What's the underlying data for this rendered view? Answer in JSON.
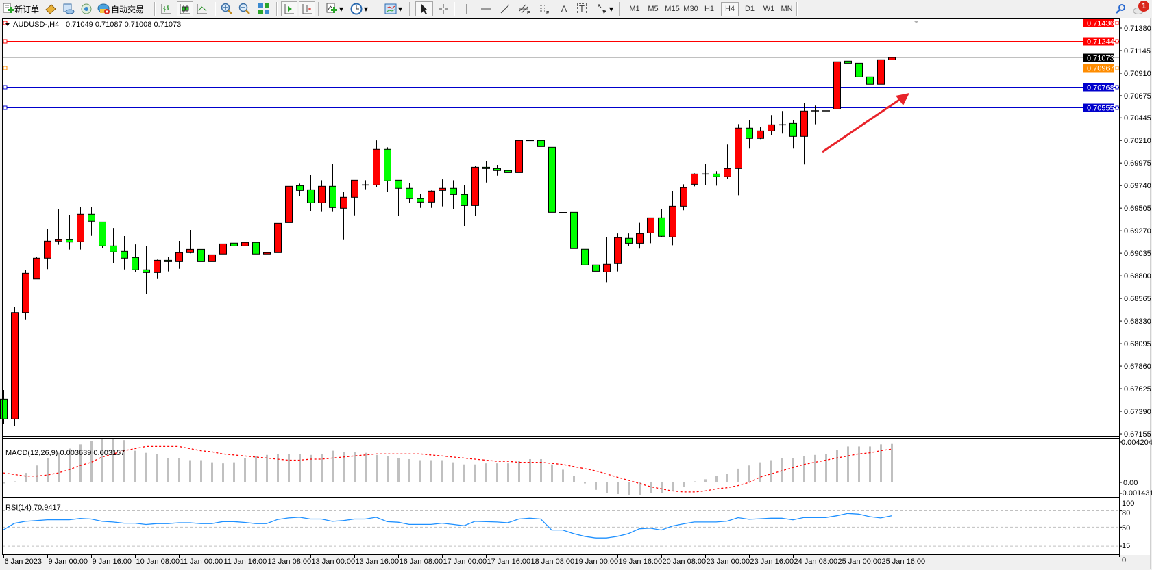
{
  "toolbar": {
    "new_order_label": "新订单",
    "auto_trading_label": "自动交易",
    "periods": [
      "M1",
      "M5",
      "M15",
      "M30",
      "H1",
      "H4",
      "D1",
      "W1",
      "MN"
    ],
    "active_period": "H4",
    "tool_letters": {
      "equidistant": "E",
      "fibo": "F",
      "text": "A",
      "text_label": "T"
    },
    "notification_count": "1"
  },
  "chart": {
    "symbol": "AUDUSD-,H4",
    "ohlc_header": "0.71049 0.71087 0.71008 0.71073",
    "price_ticks": [
      "0.71380",
      "0.71145",
      "0.70910",
      "0.70675",
      "0.70445",
      "0.70210",
      "0.69975",
      "0.69740",
      "0.69505",
      "0.69270",
      "0.69035",
      "0.68800",
      "0.68565",
      "0.68330",
      "0.68095",
      "0.67860",
      "0.67625",
      "0.67390",
      "0.67155"
    ],
    "time_labels": [
      "6 Jan 2023",
      "9 Jan 00:00",
      "9 Jan 16:00",
      "10 Jan 08:00",
      "11 Jan 00:00",
      "11 Jan 16:00",
      "12 Jan 08:00",
      "13 Jan 00:00",
      "13 Jan 16:00",
      "16 Jan 08:00",
      "17 Jan 00:00",
      "17 Jan 16:00",
      "18 Jan 08:00",
      "19 Jan 00:00",
      "19 Jan 16:00",
      "20 Jan 08:00",
      "23 Jan 00:00",
      "23 Jan 16:00",
      "24 Jan 08:00",
      "25 Jan 00:00",
      "25 Jan 16:00"
    ],
    "hlines": [
      {
        "price": "0.71436",
        "color": "#ff0000"
      },
      {
        "price": "0.71244",
        "color": "#ff0000"
      },
      {
        "price": "0.70967",
        "color": "#ff8c00"
      },
      {
        "price": "0.70768",
        "color": "#0000cc"
      },
      {
        "price": "0.70555",
        "color": "#0000cc"
      }
    ],
    "current_price": {
      "price": "0.71073",
      "color": "#000000"
    },
    "colors": {
      "bull": "#ff0000",
      "bear": "#00ff00",
      "macd_hist": "#c0c0c0",
      "macd_signal": "#ff0000",
      "rsi": "#1e90ff",
      "arrow": "#e8232a"
    }
  },
  "macd": {
    "label": "MACD(12,26,9) 0.003639 0.003157",
    "axis_max": "0.004204",
    "axis_zero": "0.00",
    "axis_min": "-0.001431"
  },
  "rsi": {
    "label": "RSI(14) 70.9417",
    "axis_labels": [
      "100",
      "80",
      "50",
      "15",
      "0"
    ]
  },
  "chart_data": {
    "type": "candlestick",
    "symbol": "AUDUSD-",
    "timeframe": "H4",
    "ylim": [
      0.67155,
      0.71436
    ],
    "ohlc_format": [
      "open",
      "high",
      "low",
      "close"
    ],
    "candles": [
      [
        0.67516,
        0.67611,
        0.6726,
        0.6731
      ],
      [
        0.6731,
        0.68473,
        0.67235,
        0.68418
      ],
      [
        0.68418,
        0.68858,
        0.68347,
        0.68827
      ],
      [
        0.68767,
        0.68993,
        0.68767,
        0.68984
      ],
      [
        0.68984,
        0.69285,
        0.6887,
        0.69162
      ],
      [
        0.69162,
        0.69492,
        0.69124,
        0.69176
      ],
      [
        0.69176,
        0.69435,
        0.69074,
        0.69152
      ],
      [
        0.69155,
        0.6952,
        0.69074,
        0.6944
      ],
      [
        0.6944,
        0.69513,
        0.69216,
        0.69369
      ],
      [
        0.69361,
        0.69361,
        0.69088,
        0.69112
      ],
      [
        0.69112,
        0.69299,
        0.68931,
        0.69048
      ],
      [
        0.69055,
        0.69214,
        0.68867,
        0.68984
      ],
      [
        0.68991,
        0.69128,
        0.68839,
        0.68863
      ],
      [
        0.68863,
        0.69114,
        0.68611,
        0.68834
      ],
      [
        0.68834,
        0.68969,
        0.68767,
        0.68962
      ],
      [
        0.68962,
        0.69,
        0.68846,
        0.68948
      ],
      [
        0.68948,
        0.69164,
        0.68874,
        0.69041
      ],
      [
        0.69041,
        0.69278,
        0.69034,
        0.69076
      ],
      [
        0.69076,
        0.69221,
        0.68941,
        0.68948
      ],
      [
        0.68948,
        0.69121,
        0.68746,
        0.69019
      ],
      [
        0.69027,
        0.69148,
        0.6886,
        0.69133
      ],
      [
        0.69141,
        0.69171,
        0.69034,
        0.69112
      ],
      [
        0.69112,
        0.69228,
        0.69088,
        0.69148
      ],
      [
        0.69148,
        0.69264,
        0.68917,
        0.69027
      ],
      [
        0.69027,
        0.69178,
        0.68888,
        0.69041
      ],
      [
        0.69041,
        0.69862,
        0.68767,
        0.69347
      ],
      [
        0.69354,
        0.69869,
        0.6928,
        0.69732
      ],
      [
        0.69739,
        0.6976,
        0.69632,
        0.69689
      ],
      [
        0.69696,
        0.69848,
        0.69473,
        0.69561
      ],
      [
        0.69561,
        0.69796,
        0.69466,
        0.69732
      ],
      [
        0.69732,
        0.69962,
        0.69466,
        0.69511
      ],
      [
        0.69504,
        0.6967,
        0.69173,
        0.69618
      ],
      [
        0.69618,
        0.69796,
        0.6943,
        0.69796
      ],
      [
        0.69746,
        0.69796,
        0.69701,
        0.69746
      ],
      [
        0.69746,
        0.70211,
        0.69722,
        0.70117
      ],
      [
        0.70117,
        0.70138,
        0.69672,
        0.69789
      ],
      [
        0.69796,
        0.69796,
        0.69423,
        0.69711
      ],
      [
        0.69711,
        0.6977,
        0.69558,
        0.69604
      ],
      [
        0.69604,
        0.69649,
        0.69508,
        0.69568
      ],
      [
        0.69568,
        0.69689,
        0.69508,
        0.69682
      ],
      [
        0.69689,
        0.69805,
        0.69523,
        0.69711
      ],
      [
        0.69711,
        0.69796,
        0.69494,
        0.69646
      ],
      [
        0.69646,
        0.69748,
        0.69316,
        0.69532
      ],
      [
        0.69532,
        0.69948,
        0.69423,
        0.69931
      ],
      [
        0.69931,
        0.69998,
        0.69772,
        0.69917
      ],
      [
        0.69917,
        0.69955,
        0.69843,
        0.69896
      ],
      [
        0.69896,
        0.70048,
        0.69751,
        0.69874
      ],
      [
        0.69874,
        0.70347,
        0.69779,
        0.70209
      ],
      [
        0.70209,
        0.70382,
        0.70057,
        0.70209
      ],
      [
        0.70209,
        0.7066,
        0.70085,
        0.70145
      ],
      [
        0.70138,
        0.70181,
        0.69401,
        0.69461
      ],
      [
        0.69458,
        0.69483,
        0.69373,
        0.69458
      ],
      [
        0.69461,
        0.69497,
        0.68945,
        0.69084
      ],
      [
        0.69077,
        0.69107,
        0.68796,
        0.68913
      ],
      [
        0.68913,
        0.69036,
        0.68767,
        0.68848
      ],
      [
        0.68841,
        0.69207,
        0.68734,
        0.6892
      ],
      [
        0.68927,
        0.69242,
        0.68846,
        0.69198
      ],
      [
        0.69191,
        0.69242,
        0.69112,
        0.6914
      ],
      [
        0.6914,
        0.69352,
        0.69084,
        0.6924
      ],
      [
        0.69247,
        0.69404,
        0.6914,
        0.69404
      ],
      [
        0.69404,
        0.69497,
        0.69205,
        0.69212
      ],
      [
        0.69205,
        0.69684,
        0.69119,
        0.69525
      ],
      [
        0.69525,
        0.69753,
        0.69483,
        0.69718
      ],
      [
        0.69753,
        0.69867,
        0.69732,
        0.6986
      ],
      [
        0.6986,
        0.69967,
        0.69744,
        0.6986
      ],
      [
        0.6986,
        0.69889,
        0.69739,
        0.69832
      ],
      [
        0.69832,
        0.70167,
        0.6981,
        0.69917
      ],
      [
        0.69917,
        0.7038,
        0.69639,
        0.70338
      ],
      [
        0.70338,
        0.70423,
        0.70124,
        0.70231
      ],
      [
        0.70231,
        0.70347,
        0.70224,
        0.70309
      ],
      [
        0.70309,
        0.70473,
        0.70266,
        0.70373
      ],
      [
        0.70373,
        0.70516,
        0.70281,
        0.70373
      ],
      [
        0.70387,
        0.70423,
        0.70124,
        0.70252
      ],
      [
        0.70252,
        0.70601,
        0.6996,
        0.70516
      ],
      [
        0.70518,
        0.70573,
        0.70378,
        0.70518
      ],
      [
        0.70518,
        0.70559,
        0.70342,
        0.70518
      ],
      [
        0.70537,
        0.71079,
        0.70409,
        0.71029
      ],
      [
        0.71036,
        0.71244,
        0.70957,
        0.71014
      ],
      [
        0.71014,
        0.711,
        0.70798,
        0.70872
      ],
      [
        0.70872,
        0.71007,
        0.70641,
        0.70794
      ],
      [
        0.70794,
        0.71093,
        0.70684,
        0.7105
      ],
      [
        0.71049,
        0.71087,
        0.71008,
        0.71073
      ]
    ],
    "macd_histogram": [
      -0.0001,
      0.0001,
      0.0009,
      0.0016,
      0.0023,
      0.0028,
      0.0032,
      0.0036,
      0.0039,
      0.0041,
      0.0042,
      0.004,
      0.003,
      0.0028,
      0.0027,
      0.0023,
      0.0023,
      0.0021,
      0.0021,
      0.0019,
      0.0018,
      0.0019,
      0.0023,
      0.0025,
      0.0026,
      0.0027,
      0.0027,
      0.0027,
      0.0026,
      0.0027,
      0.003,
      0.0029,
      0.0029,
      0.0028,
      0.0026,
      0.0025,
      0.0023,
      0.0022,
      0.0021,
      0.0021,
      0.0021,
      0.0019,
      0.0017,
      0.0017,
      0.0018,
      0.0018,
      0.0018,
      0.002,
      0.0022,
      0.0022,
      0.0017,
      0.0012,
      0.0006,
      -0.0001,
      -0.0007,
      -0.001,
      -0.0011,
      -0.0012,
      -0.0012,
      -0.001,
      -0.001,
      -0.0008,
      -0.0004,
      0.0001,
      0.0003,
      0.0006,
      0.0008,
      0.0013,
      0.0016,
      0.0019,
      0.0021,
      0.0023,
      0.0023,
      0.0025,
      0.0026,
      0.0027,
      0.0031,
      0.0034,
      0.0034,
      0.0034,
      0.0036,
      0.003639
    ],
    "macd_signal": [
      0.0009,
      0.00075,
      0.0006,
      0.0006,
      0.0007,
      0.0009,
      0.0012,
      0.0016,
      0.0019,
      0.0024,
      0.0027,
      0.003,
      0.0032,
      0.0034,
      0.0034,
      0.0034,
      0.0034,
      0.0032,
      0.003,
      0.0029,
      0.0027,
      0.0026,
      0.0025,
      0.0024,
      0.0023,
      0.0022,
      0.0021,
      0.0021,
      0.0022,
      0.0022,
      0.0023,
      0.0024,
      0.0025,
      0.0026,
      0.0027,
      0.0027,
      0.0027,
      0.0027,
      0.0027,
      0.0026,
      0.0025,
      0.0024,
      0.0023,
      0.0022,
      0.0021,
      0.002,
      0.002,
      0.0019,
      0.0019,
      0.0019,
      0.0018,
      0.0017,
      0.0015,
      0.0013,
      0.0011,
      0.0008,
      0.0005,
      0.0002,
      -0.0001,
      -0.0004,
      -0.0006,
      -0.0008,
      -0.0009,
      -0.0009,
      -0.0008,
      -0.0006,
      -0.0005,
      -0.0003,
      0,
      0.0005,
      0.0008,
      0.0011,
      0.0014,
      0.0017,
      0.0019,
      0.0021,
      0.0023,
      0.0025,
      0.0027,
      0.0028,
      0.003,
      0.003157
    ],
    "macd_ylim": [
      -0.001431,
      0.004204
    ],
    "rsi": [
      45,
      57,
      60.7,
      62,
      63.6,
      63.6,
      63.6,
      66,
      65,
      60.7,
      59.4,
      57.3,
      57.3,
      54.8,
      56.5,
      56.5,
      58,
      58,
      56.5,
      56.5,
      60.2,
      60.2,
      58.6,
      56.5,
      56.5,
      64,
      67,
      68.2,
      65,
      65,
      60.7,
      62,
      65,
      65,
      68.2,
      60,
      59,
      55,
      55,
      55,
      57.3,
      55,
      52.6,
      60.7,
      60,
      59.4,
      58,
      65,
      66.5,
      65,
      44.7,
      44.7,
      38,
      33,
      30,
      30,
      33,
      38,
      47,
      48,
      44.7,
      52,
      56,
      59.4,
      59.4,
      59.4,
      61,
      67.5,
      64.5,
      65.5,
      66.5,
      66.5,
      63.4,
      67.7,
      67.7,
      67.7,
      71,
      75.3,
      74,
      69.4,
      66.9,
      70.9417
    ],
    "rsi_levels": [
      80,
      50,
      15
    ],
    "rsi_ylim": [
      0,
      100
    ],
    "grid": false
  }
}
